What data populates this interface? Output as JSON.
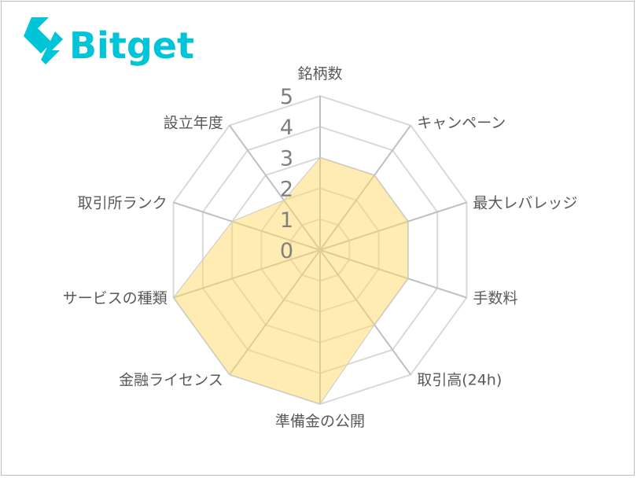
{
  "logo": {
    "text": "Bitget",
    "color": "#00C4D8"
  },
  "chart_data": {
    "type": "radar",
    "categories": [
      "銘柄数",
      "キャンペーン",
      "最大レバレッジ",
      "手数料",
      "取引高(24h)",
      "準備金の公開",
      "金融ライセンス",
      "サービスの種類",
      "取引所ランク",
      "設立年度"
    ],
    "values": [
      3,
      3,
      3,
      3,
      3,
      5,
      5,
      5,
      3,
      2
    ],
    "rlim": [
      0,
      5
    ],
    "ticks": [
      "0",
      "1",
      "2",
      "3",
      "4",
      "5"
    ],
    "fill_color": "#FFD966",
    "grid": true,
    "legend": "none"
  }
}
